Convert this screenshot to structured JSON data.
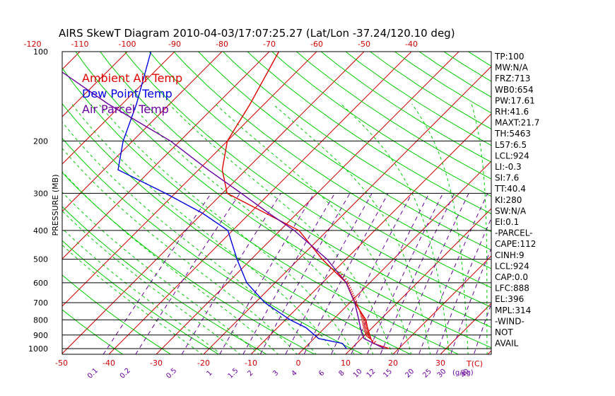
{
  "title": "AIRS SkewT Diagram 2010-04-03/17:07:25.27 (Lat/Lon -37.24/120.10 deg)",
  "colors": {
    "ambient": "#e00000",
    "dewpoint": "#0000e0",
    "parcel": "#6a00a0",
    "isotherm": "#d00000",
    "dry_adiabat": "#00cc00",
    "moist_adiabat": "#00cc00",
    "mixing_ratio": "#6a00a0",
    "isobar": "#000000"
  },
  "legend": [
    {
      "label": "Ambient Air Temp",
      "color": "#e00000"
    },
    {
      "label": "Dew Point Temp",
      "color": "#0000e0"
    },
    {
      "label": "Air Parcel Temp",
      "color": "#6a00a0"
    }
  ],
  "indices": [
    "TP:100",
    "MW:N/A",
    "FRZ:713",
    "WB0:654",
    "PW:17.61",
    "RH:41.6",
    "MAXT:21.7",
    "TH:5463",
    "L57:6.5",
    "LCL:924",
    "LI:-0.3",
    "SI:7.6",
    "TT:40.4",
    "KI:280",
    "SW:N/A",
    "EI:0.1",
    "-PARCEL-",
    "CAPE:112",
    "CINH:9",
    "LCL:924",
    "CAP:0.0",
    "LFC:888",
    "EL:396",
    "MPL:314",
    "-WIND-",
    "NOT",
    "AVAIL"
  ],
  "chart_data": {
    "type": "line",
    "title": "AIRS SkewT Diagram 2010-04-03/17:07:25.27 (Lat/Lon -37.24/120.10 deg)",
    "ylabel": "PRESSURE (MB)",
    "yscale": "log",
    "ylim": [
      1050,
      100
    ],
    "pressure_ticks": [
      100,
      200,
      300,
      400,
      500,
      600,
      700,
      800,
      900,
      1000
    ],
    "bottom_temp_ticks": [
      -50,
      -40,
      -30,
      -20,
      -10,
      0,
      10,
      20,
      30
    ],
    "bottom_unit_label": "T(C)",
    "top_temp_ticks": [
      -120,
      -110,
      -100,
      -90,
      -80,
      -70,
      -60,
      -50,
      -40
    ],
    "mixing_ratio_labels": [
      "0.1",
      "0.2",
      "0.5",
      "1",
      "1.5",
      "2",
      "3",
      "4",
      "6",
      "8",
      "10",
      "12",
      "15",
      "20",
      "25",
      "30",
      "40"
    ],
    "mixing_ratio_unit": "(g/kg)",
    "series": [
      {
        "name": "Ambient Air Temp",
        "points": [
          [
            1000,
            18
          ],
          [
            960,
            13.5
          ],
          [
            925,
            12
          ],
          [
            850,
            9
          ],
          [
            800,
            7
          ],
          [
            700,
            1
          ],
          [
            600,
            -5
          ],
          [
            500,
            -15
          ],
          [
            400,
            -26
          ],
          [
            300,
            -49
          ],
          [
            250,
            -55
          ],
          [
            200,
            -60
          ],
          [
            150,
            -63
          ],
          [
            100,
            -68
          ]
        ]
      },
      {
        "name": "Dew Point Temp",
        "points": [
          [
            1000,
            9
          ],
          [
            960,
            7
          ],
          [
            925,
            1
          ],
          [
            850,
            -4
          ],
          [
            800,
            -9
          ],
          [
            700,
            -18
          ],
          [
            600,
            -26
          ],
          [
            500,
            -33
          ],
          [
            400,
            -41
          ],
          [
            350,
            -50
          ],
          [
            300,
            -62
          ],
          [
            250,
            -77
          ],
          [
            200,
            -82
          ],
          [
            150,
            -87
          ],
          [
            100,
            -95
          ]
        ]
      },
      {
        "name": "Air Parcel Temp",
        "points": [
          [
            1000,
            17
          ],
          [
            924,
            10.5
          ],
          [
            888,
            9
          ],
          [
            850,
            7.5
          ],
          [
            800,
            5.5
          ],
          [
            700,
            1
          ],
          [
            600,
            -5
          ],
          [
            500,
            -14
          ],
          [
            400,
            -27
          ],
          [
            350,
            -36
          ],
          [
            300,
            -46
          ],
          [
            250,
            -58
          ],
          [
            200,
            -72
          ],
          [
            150,
            -93
          ],
          [
            100,
            -120
          ]
        ]
      }
    ]
  }
}
